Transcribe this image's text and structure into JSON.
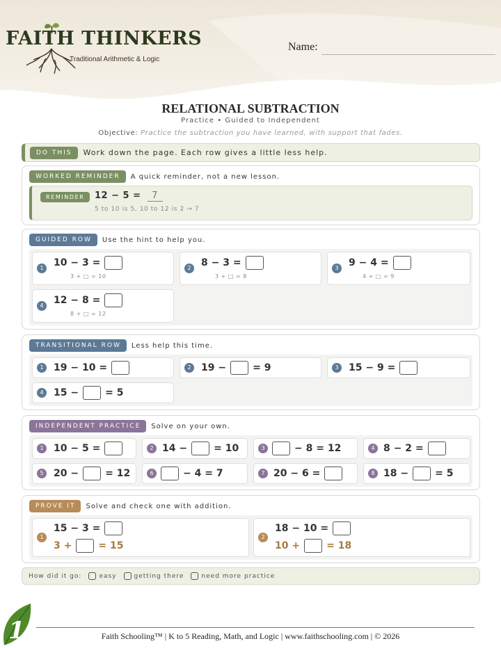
{
  "header": {
    "logo_title": "FAITH THINKERS",
    "logo_subtitle": "Traditional Arithmetic & Logic",
    "name_label": "Name:"
  },
  "title": "RELATIONAL SUBTRACTION",
  "subtitle": "Practice • Guided to Independent",
  "objective": {
    "label": "Objective:",
    "text": "Practice the subtraction you have learned, with support that fades."
  },
  "do_this": {
    "pill": "DO THIS",
    "text": "Work down the page. Each row gives a little less help."
  },
  "worked_reminder": {
    "pill": "WORKED REMINDER",
    "text": "A quick reminder, not a new lesson.",
    "reminder_pill": "REMINDER",
    "equation": "12 − 5 =",
    "answer": "7",
    "note": "5 to 10 is 5, 10 to 12 is 2 → 7"
  },
  "guided_row": {
    "pill": "GUIDED ROW",
    "text": "Use the hint to help you.",
    "items": [
      {
        "n": "1",
        "a": "10 − 3 =",
        "hint": "3 + □ = 10"
      },
      {
        "n": "2",
        "a": "8 − 3 =",
        "hint": "3 + □ = 8"
      },
      {
        "n": "3",
        "a": "9 − 4 =",
        "hint": "4 + □ = 9"
      },
      {
        "n": "4",
        "a": "12 − 8 =",
        "hint": "8 + □ = 12"
      }
    ]
  },
  "transitional_row": {
    "pill": "TRANSITIONAL ROW",
    "text": "Less help this time.",
    "items": [
      {
        "n": "1",
        "a": "19 − 10 =",
        "b": ""
      },
      {
        "n": "2",
        "a": "19 −",
        "b": "= 9"
      },
      {
        "n": "3",
        "a": "15 − 9 =",
        "b": ""
      },
      {
        "n": "4",
        "a": "15 −",
        "b": "= 5"
      }
    ]
  },
  "independent_practice": {
    "pill": "INDEPENDENT PRACTICE",
    "text": "Solve on your own.",
    "items": [
      {
        "n": "1",
        "a": "10 − 5 =",
        "b": ""
      },
      {
        "n": "2",
        "a": "14 −",
        "b": "= 10"
      },
      {
        "n": "3",
        "a": "",
        "b": "− 8 = 12"
      },
      {
        "n": "4",
        "a": "8 − 2 =",
        "b": ""
      },
      {
        "n": "5",
        "a": "20 −",
        "b": "= 12"
      },
      {
        "n": "6",
        "a": "",
        "b": "− 4 = 7"
      },
      {
        "n": "7",
        "a": "20 − 6 =",
        "b": ""
      },
      {
        "n": "8",
        "a": "18 −",
        "b": "= 5"
      }
    ]
  },
  "prove_it": {
    "pill": "PROVE IT",
    "text": "Solve and check one with addition.",
    "items": [
      {
        "n": "1",
        "a": "15 − 3 =",
        "check_a": "3 +",
        "check_b": "= 15"
      },
      {
        "n": "2",
        "a": "18 − 10 =",
        "check_a": "10 +",
        "check_b": "= 18"
      }
    ]
  },
  "self_check": {
    "prompt": "How did it go:",
    "options": [
      "easy",
      "getting there",
      "need more practice"
    ]
  },
  "footer": {
    "text": "Faith Schooling™ | K to 5 Reading, Math, and Logic | www.faithschooling.com | © 2026"
  },
  "colors": {
    "green": "#7b9062",
    "blue": "#5c7a96",
    "purple": "#8a7498",
    "brown": "#b78c58"
  }
}
